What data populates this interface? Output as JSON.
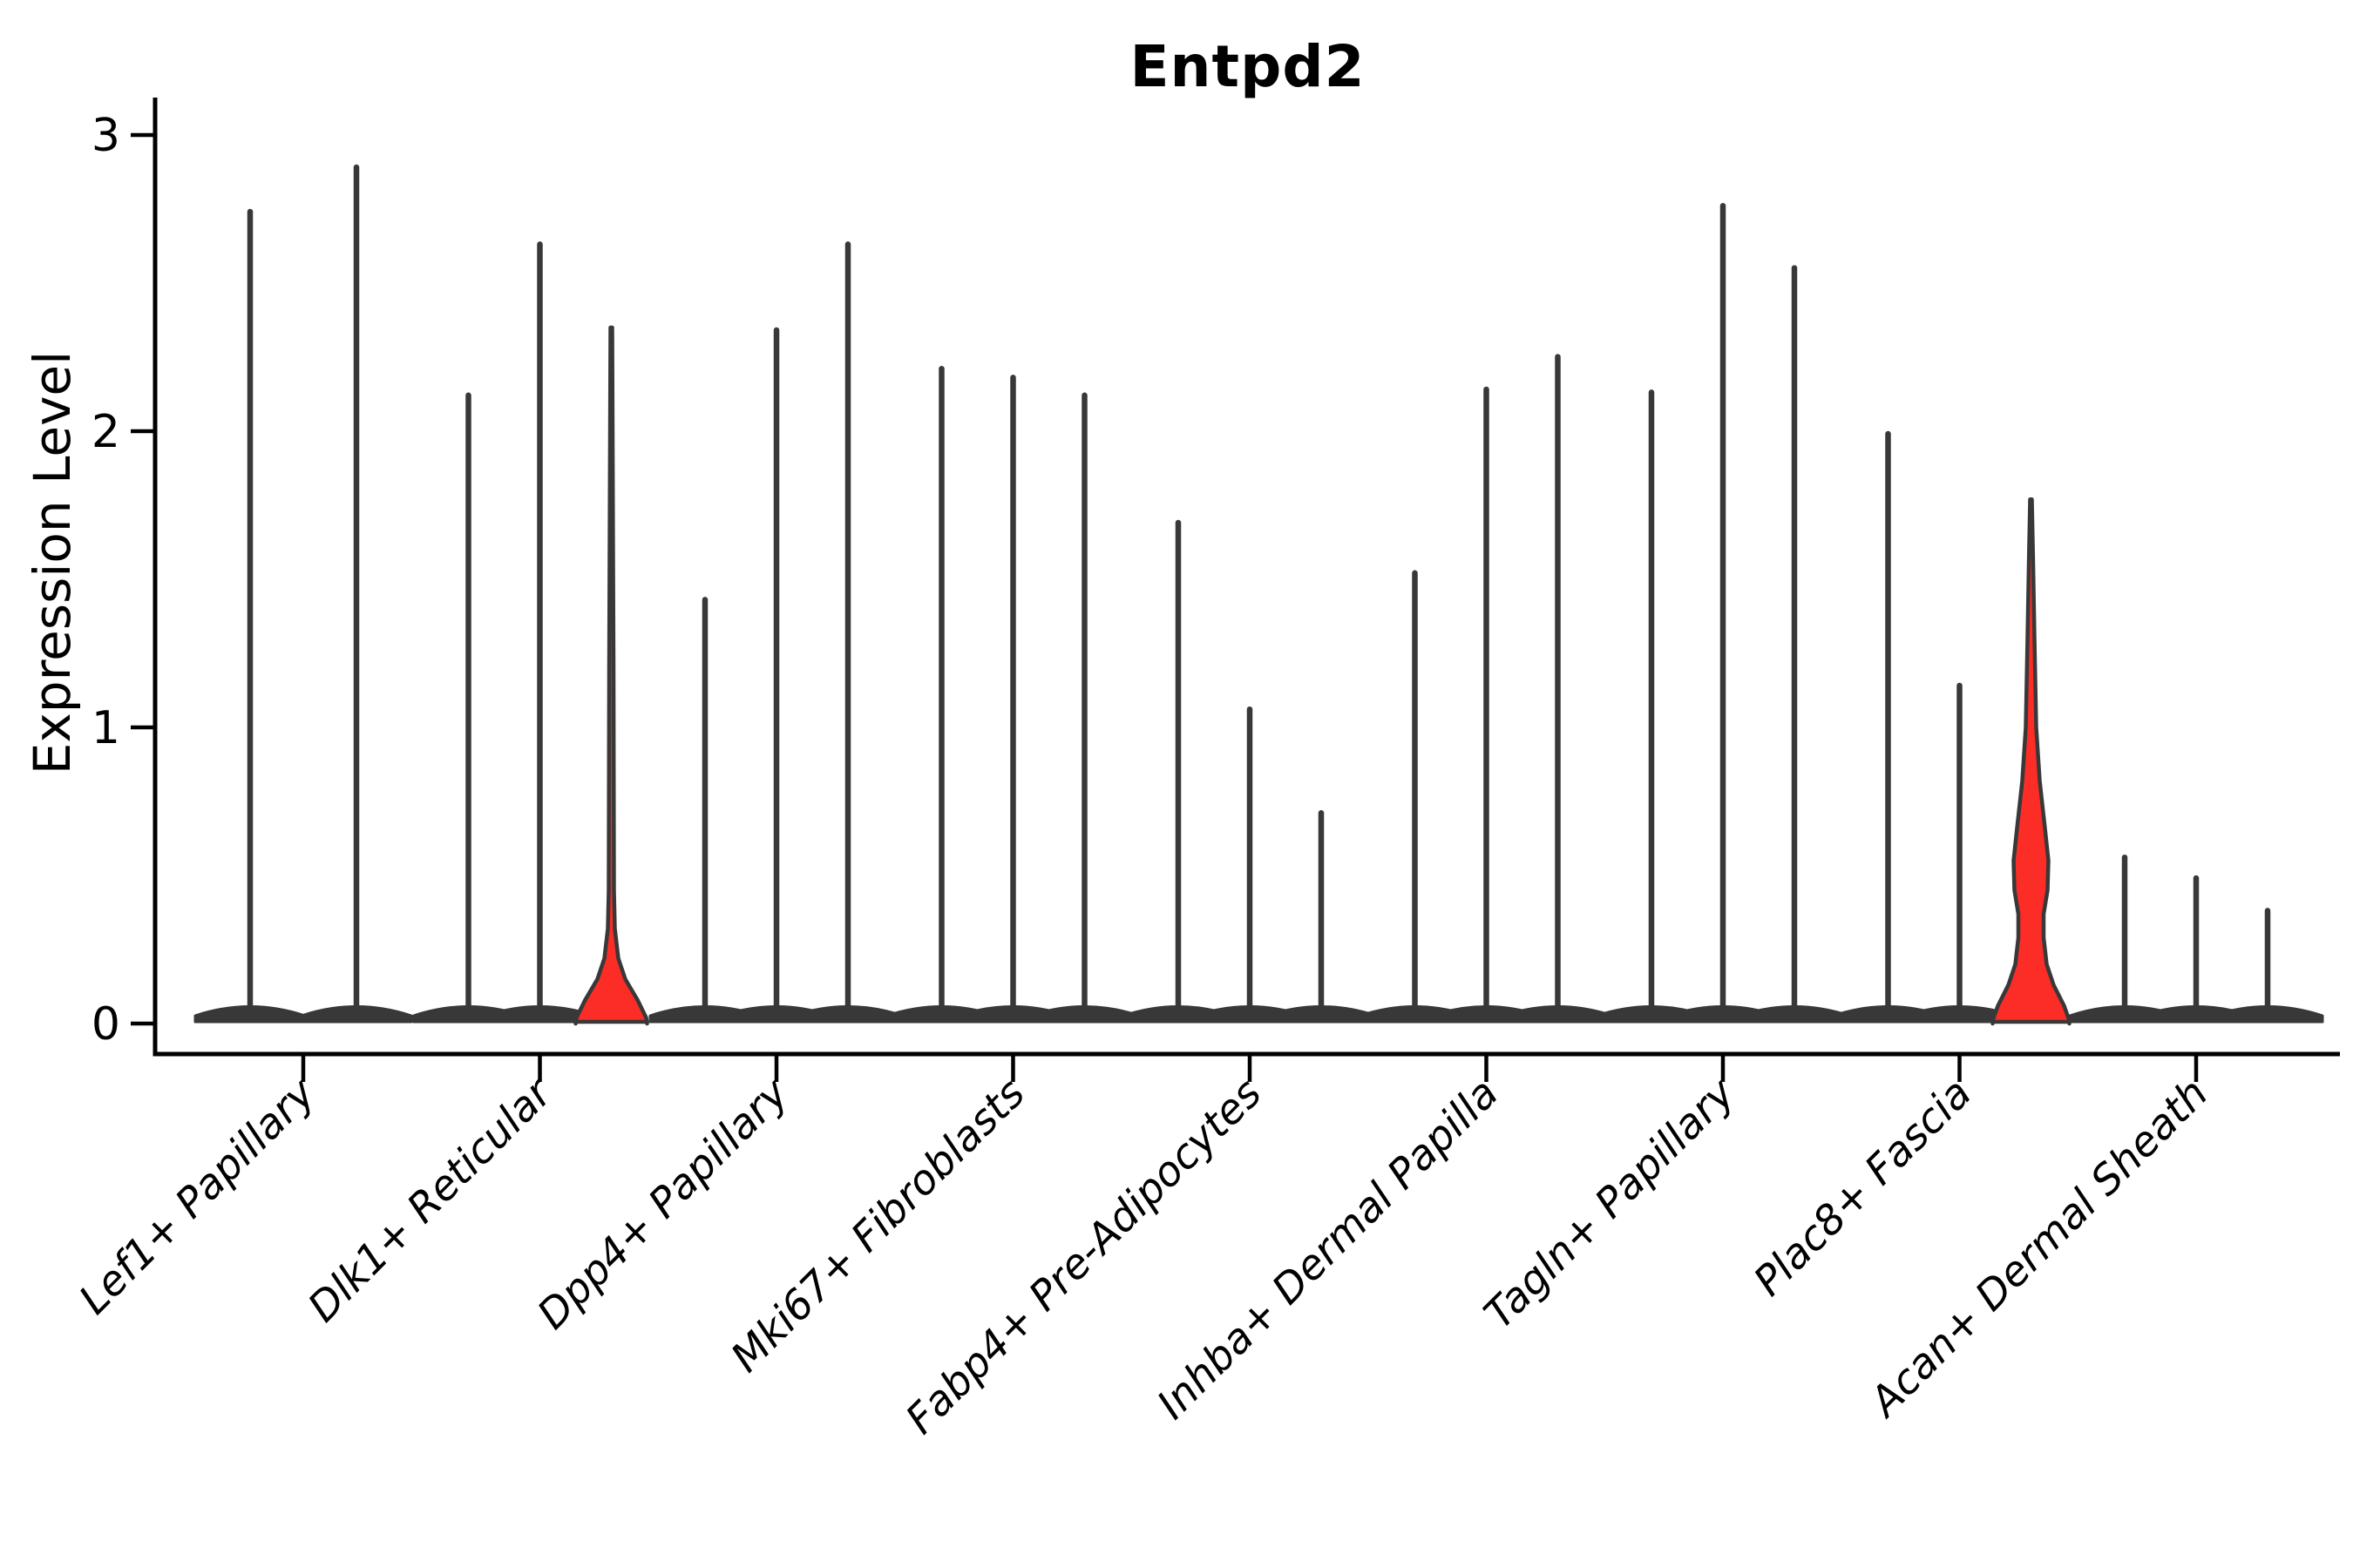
{
  "page": {
    "background": "#ffffff"
  },
  "chart_data": {
    "type": "violin",
    "title": "Entpd2",
    "ylabel": "Expression Level",
    "xlabel": "",
    "ylim": [
      -0.1,
      3.15
    ],
    "yticks": [
      0,
      1,
      2,
      3
    ],
    "grid": false,
    "legend": null,
    "description": "Violin plot of Entpd2 expression across 9 fibroblast cell-type categories; each category contains 2-3 sample violins that are flat at 0 with a thin density spike up to the maximum expression value; two violins are filled red (highlighted).",
    "categories": [
      "Lef1+ Papillary",
      "Dlk1+ Reticular",
      "Dpp4+ Papillary",
      "Mki67+ Fibroblasts",
      "Fabp4+ Pre-Adipocytes",
      "Inhba+ Dermal Papilla",
      "Tagln+ Papillary",
      "Plac8+ Fascia",
      "Acan+ Dermal Sheath"
    ],
    "groups": [
      {
        "category": "Lef1+ Papillary",
        "violins": [
          {
            "max": 2.75
          },
          {
            "max": 2.9
          }
        ]
      },
      {
        "category": "Dlk1+ Reticular",
        "violins": [
          {
            "max": 2.13
          },
          {
            "max": 2.64
          },
          {
            "max": 2.35,
            "highlight": true,
            "profile": [
              [
                2.35,
                1
              ],
              [
                1.2,
                2.5
              ],
              [
                0.45,
                3
              ],
              [
                0.32,
                4
              ],
              [
                0.22,
                8
              ],
              [
                0.15,
                16
              ],
              [
                0.08,
                30
              ],
              [
                0.02,
                40
              ],
              [
                0,
                41
              ]
            ]
          }
        ]
      },
      {
        "category": "Dpp4+ Papillary",
        "violins": [
          {
            "max": 1.44
          },
          {
            "max": 2.35
          },
          {
            "max": 2.64
          }
        ]
      },
      {
        "category": "Mki67+ Fibroblasts",
        "violins": [
          {
            "max": 2.22
          },
          {
            "max": 2.19
          },
          {
            "max": 2.13
          }
        ]
      },
      {
        "category": "Fabp4+ Pre-Adipocytes",
        "violins": [
          {
            "max": 1.7
          },
          {
            "max": 1.07
          },
          {
            "max": 0.72
          }
        ]
      },
      {
        "category": "Inhba+ Dermal Papilla",
        "violins": [
          {
            "max": 1.53
          },
          {
            "max": 2.15
          },
          {
            "max": 2.26
          }
        ]
      },
      {
        "category": "Tagln+ Papillary",
        "violins": [
          {
            "max": 2.14
          },
          {
            "max": 2.77
          },
          {
            "max": 2.56
          }
        ]
      },
      {
        "category": "Plac8+ Fascia",
        "violins": [
          {
            "max": 2.0
          },
          {
            "max": 1.15
          },
          {
            "max": 1.77,
            "highlight": true,
            "profile": [
              [
                1.77,
                1
              ],
              [
                1.55,
                2.5
              ],
              [
                1.3,
                4
              ],
              [
                1.0,
                6
              ],
              [
                0.82,
                10
              ],
              [
                0.66,
                16
              ],
              [
                0.55,
                20
              ],
              [
                0.45,
                19
              ],
              [
                0.37,
                14.5
              ],
              [
                0.29,
                14.5
              ],
              [
                0.2,
                18
              ],
              [
                0.13,
                26
              ],
              [
                0.06,
                38
              ],
              [
                0.01,
                44
              ],
              [
                0,
                44
              ]
            ]
          }
        ]
      },
      {
        "category": "Acan+ Dermal Sheath",
        "violins": [
          {
            "max": 0.57
          },
          {
            "max": 0.5
          },
          {
            "max": 0.39
          }
        ]
      }
    ],
    "colors": {
      "violin_stroke": "#383838",
      "highlight_fill": "#fb2d26",
      "axis": "#000000",
      "text": "#000000"
    }
  }
}
